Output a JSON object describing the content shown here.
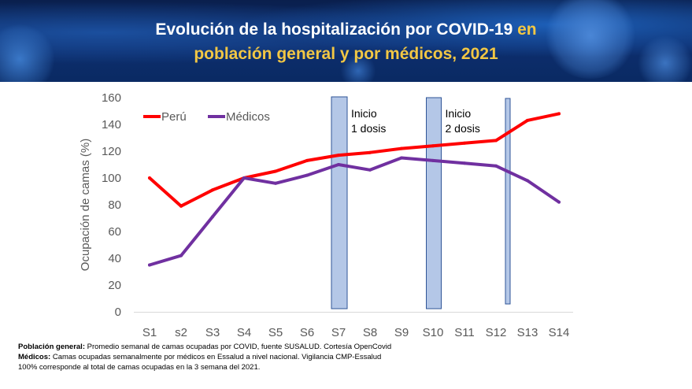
{
  "header": {
    "title_white_1": "Evolución de la hospitalización por COVID-19",
    "title_yellow_1": "en",
    "title_yellow_2": "población general y por médicos, 2021"
  },
  "chart_data": {
    "type": "line",
    "categories": [
      "S1",
      "s2",
      "S3",
      "S4",
      "S5",
      "S6",
      "S7",
      "S8",
      "S9",
      "S10",
      "S11",
      "S12",
      "S13",
      "S14"
    ],
    "series": [
      {
        "name": "Perú",
        "color": "#ff0000",
        "values": [
          100,
          79,
          91,
          100,
          105,
          113,
          117,
          119,
          122,
          124,
          126,
          128,
          143,
          148
        ]
      },
      {
        "name": "Médicos",
        "color": "#7030a0",
        "values": [
          35,
          42,
          71,
          100,
          96,
          102,
          110,
          106,
          115,
          113,
          111,
          109,
          98,
          82
        ]
      }
    ],
    "ylabel": "Ocupación de camas (%)",
    "xlabel": "",
    "ylim": [
      0,
      160
    ],
    "yticks": [
      0,
      20,
      40,
      60,
      80,
      100,
      120,
      140,
      160
    ],
    "grid": false,
    "legend": "top-left",
    "annotations": [
      {
        "label_line1": "Inicio",
        "label_line2": "1 dosis",
        "at": "S7"
      },
      {
        "label_line1": "Inicio",
        "label_line2": "2 dosis",
        "at": "S10"
      },
      {
        "label_line1": "",
        "label_line2": "",
        "at": "S12"
      }
    ]
  },
  "footnotes": {
    "line1_bold": "Población general:",
    "line1_text": " Promedio semanal de camas ocupadas por COVID, fuente SUSALUD. Cortesía OpenCovid",
    "line2_bold": "Médicos:",
    "line2_text": " Camas ocupadas semanalmente por médicos en Essalud a nivel nacional. Vigilancia CMP-Essalud",
    "line3_text": "100% corresponde al total de camas ocupadas en la 3 semana del 2021."
  }
}
